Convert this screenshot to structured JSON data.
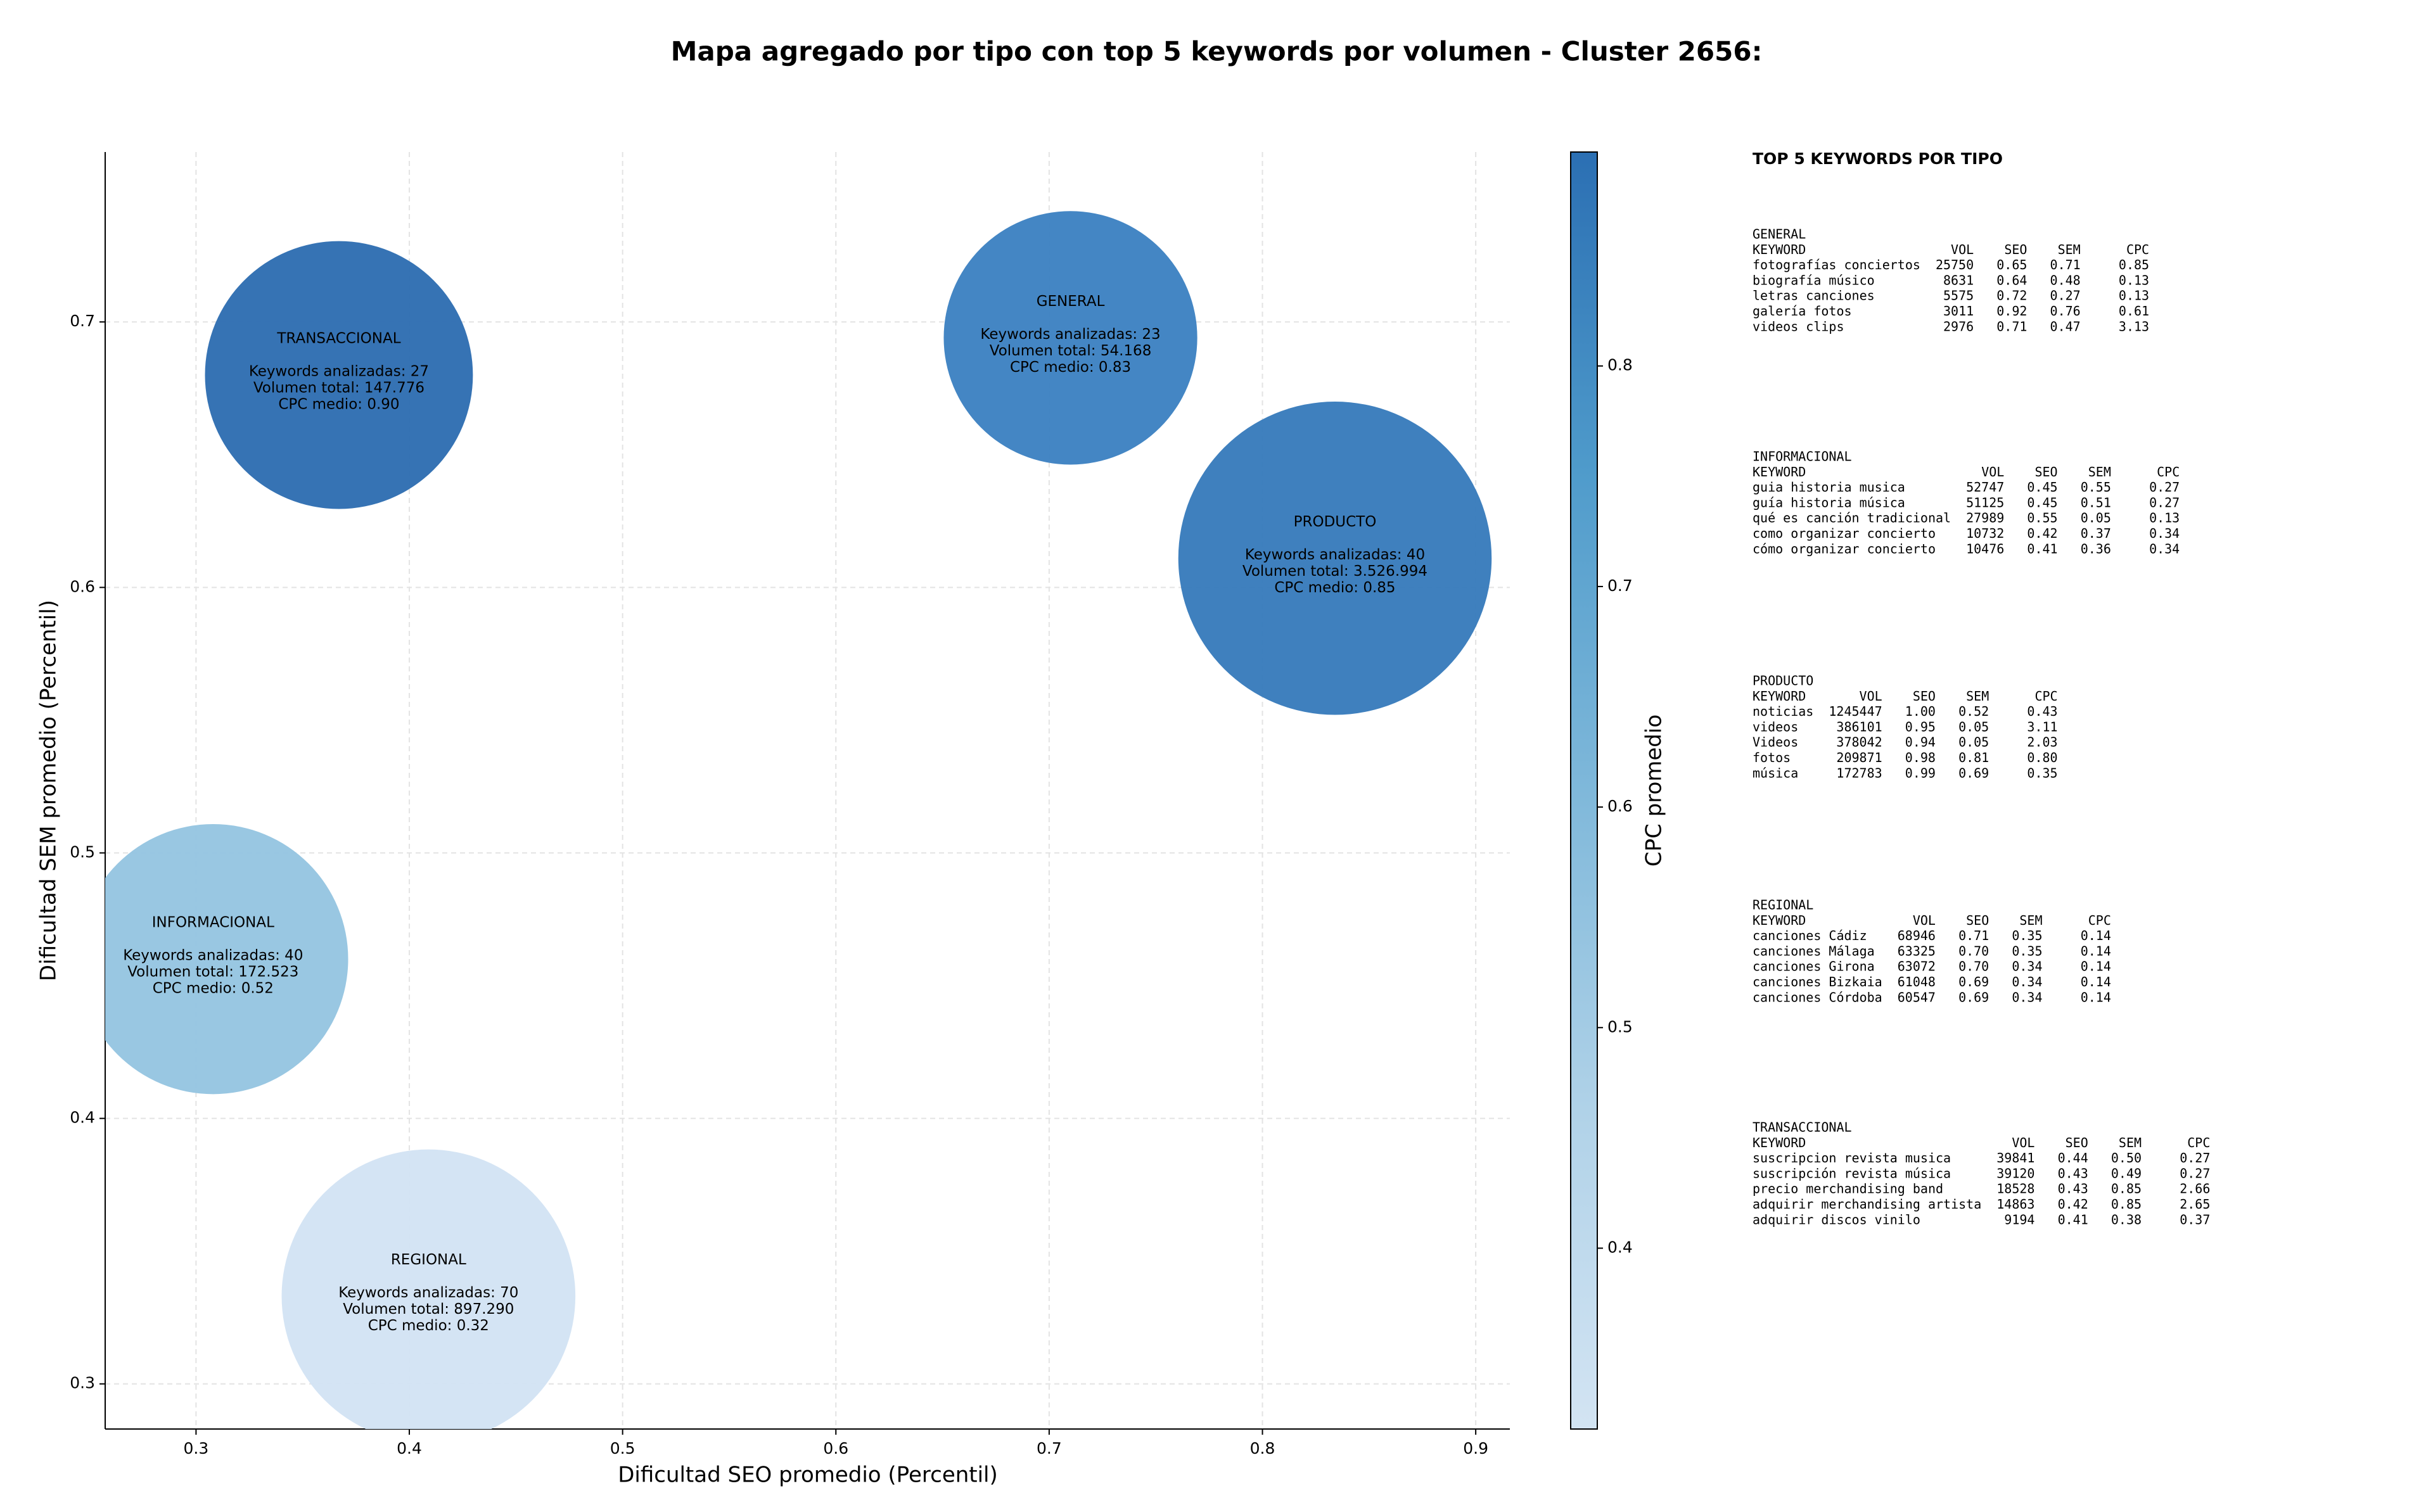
{
  "chart_data": {
    "type": "scatter",
    "title": "Mapa agregado por tipo con top 5 keywords por volumen - Cluster 2656:",
    "xlabel": "Dificultad SEO promedio (Percentil)",
    "ylabel": "Dificultad SEM promedio (Percentil)",
    "colorbar_label": "CPC promedio",
    "x": [
      0.367,
      0.71,
      0.834,
      0.308,
      0.409
    ],
    "y": [
      0.68,
      0.694,
      0.611,
      0.46,
      0.333
    ],
    "sizes": [
      147776,
      54168,
      3526994,
      172523,
      897290
    ],
    "colors": [
      "#2b6cb0",
      "#3a80c1",
      "#3579bb",
      "#94c4e0",
      "#d2e3f3"
    ],
    "labels": [
      [
        "TRANSACCIONAL",
        "Keywords analizadas: 27",
        "Volumen total: 147.776",
        "CPC medio: 0.90"
      ],
      [
        "GENERAL",
        "Keywords analizadas: 23",
        "Volumen total: 54.168",
        "CPC medio: 0.83"
      ],
      [
        "PRODUCTO",
        "Keywords analizadas: 40",
        "Volumen total: 3.526.994",
        "CPC medio: 0.85"
      ],
      [
        "INFORMACIONAL",
        "Keywords analizadas: 40",
        "Volumen total: 172.523",
        "CPC medio: 0.52"
      ],
      [
        "REGIONAL",
        "Keywords analizadas: 70",
        "Volumen total: 897.290",
        "CPC medio: 0.32"
      ]
    ],
    "xlim": [
      0.2574,
      0.916
    ],
    "ylim": [
      0.283,
      0.764
    ],
    "xticks": [
      0.3,
      0.4,
      0.5,
      0.6,
      0.7,
      0.8,
      0.9
    ],
    "yticks": [
      0.3,
      0.4,
      0.5,
      0.6,
      0.7
    ],
    "clim": [
      0.318,
      0.897
    ],
    "cticks": [
      0.4,
      0.5,
      0.6,
      0.7,
      0.8
    ],
    "colormap": [
      "#d3e4f3",
      "#b0d2e8",
      "#7fb8da",
      "#4f9bcb",
      "#2b6fb3"
    ],
    "grid": true
  },
  "side_panel": {
    "title": "TOP 5 KEYWORDS POR TIPO",
    "sections": [
      {
        "name": "GENERAL",
        "header": [
          "KEYWORD",
          "VOL",
          "SEO",
          "SEM",
          "CPC"
        ],
        "rows": [
          [
            "fotografías conciertos",
            "25750",
            "0.65",
            "0.71",
            "0.85"
          ],
          [
            "biografía músico",
            "8631",
            "0.64",
            "0.48",
            "0.13"
          ],
          [
            "letras canciones",
            "5575",
            "0.72",
            "0.27",
            "0.13"
          ],
          [
            "galería fotos",
            "3011",
            "0.92",
            "0.76",
            "0.61"
          ],
          [
            "videos clips",
            "2976",
            "0.71",
            "0.47",
            "3.13"
          ]
        ]
      },
      {
        "name": "INFORMACIONAL",
        "header": [
          "KEYWORD",
          "VOL",
          "SEO",
          "SEM",
          "CPC"
        ],
        "rows": [
          [
            "guia historia musica",
            "52747",
            "0.45",
            "0.55",
            "0.27"
          ],
          [
            "guía historia música",
            "51125",
            "0.45",
            "0.51",
            "0.27"
          ],
          [
            "qué es canción tradicional",
            "27989",
            "0.55",
            "0.05",
            "0.13"
          ],
          [
            "como organizar concierto",
            "10732",
            "0.42",
            "0.37",
            "0.34"
          ],
          [
            "cómo organizar concierto",
            "10476",
            "0.41",
            "0.36",
            "0.34"
          ]
        ]
      },
      {
        "name": "PRODUCTO",
        "header": [
          "KEYWORD",
          "VOL",
          "SEO",
          "SEM",
          "CPC"
        ],
        "rows": [
          [
            "noticias",
            "1245447",
            "1.00",
            "0.52",
            "0.43"
          ],
          [
            "videos",
            "386101",
            "0.95",
            "0.05",
            "3.11"
          ],
          [
            "Videos",
            "378042",
            "0.94",
            "0.05",
            "2.03"
          ],
          [
            "fotos",
            "209871",
            "0.98",
            "0.81",
            "0.80"
          ],
          [
            "música",
            "172783",
            "0.99",
            "0.69",
            "0.35"
          ]
        ]
      },
      {
        "name": "REGIONAL",
        "header": [
          "KEYWORD",
          "VOL",
          "SEO",
          "SEM",
          "CPC"
        ],
        "rows": [
          [
            "canciones Cádiz",
            "68946",
            "0.71",
            "0.35",
            "0.14"
          ],
          [
            "canciones Málaga",
            "63325",
            "0.70",
            "0.35",
            "0.14"
          ],
          [
            "canciones Girona",
            "63072",
            "0.70",
            "0.34",
            "0.14"
          ],
          [
            "canciones Bizkaia",
            "61048",
            "0.69",
            "0.34",
            "0.14"
          ],
          [
            "canciones Córdoba",
            "60547",
            "0.69",
            "0.34",
            "0.14"
          ]
        ]
      },
      {
        "name": "TRANSACCIONAL",
        "header": [
          "KEYWORD",
          "VOL",
          "SEO",
          "SEM",
          "CPC"
        ],
        "rows": [
          [
            "suscripcion revista musica",
            "39841",
            "0.44",
            "0.50",
            "0.27"
          ],
          [
            "suscripción revista música",
            "39120",
            "0.43",
            "0.49",
            "0.27"
          ],
          [
            "precio merchandising band",
            "18528",
            "0.43",
            "0.85",
            "2.66"
          ],
          [
            "adquirir merchandising artista",
            "14863",
            "0.42",
            "0.85",
            "2.65"
          ],
          [
            "adquirir discos vinilo",
            "9194",
            "0.41",
            "0.38",
            "0.37"
          ]
        ]
      }
    ]
  }
}
